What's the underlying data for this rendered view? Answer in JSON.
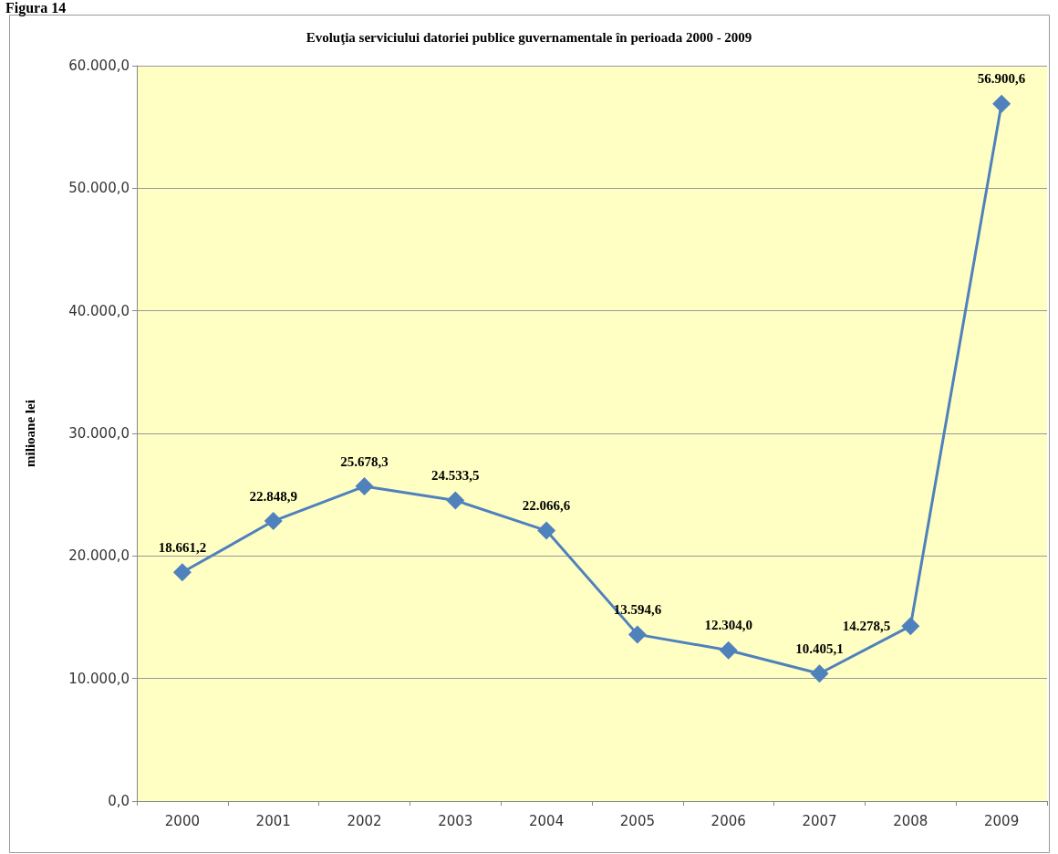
{
  "chart_data": {
    "type": "line",
    "title": "Evoluţia serviciului datoriei publice guvernamentale în perioada 2000 - 2009",
    "ylabel": "milioane lei",
    "annotations": [
      "Figura 14"
    ],
    "categories": [
      "2000",
      "2001",
      "2002",
      "2003",
      "2004",
      "2005",
      "2006",
      "2007",
      "2008",
      "2009"
    ],
    "series": [
      {
        "color": "#4f81bd",
        "values": [
          18661.2,
          22848.9,
          25678.3,
          24533.5,
          22066.6,
          13594.6,
          12304.0,
          10405.1,
          14278.5,
          56900.6
        ],
        "value_labels": [
          "18.661,2",
          "22.848,9",
          "25.678,3",
          "24.533,5",
          "22.066,6",
          "13.594,6",
          "12.304,0",
          "10.405,1",
          "14.278,5",
          "56.900,6"
        ]
      }
    ],
    "ylim": [
      0,
      60000
    ],
    "yticks": [
      {
        "value": 0,
        "label": "0,0"
      },
      {
        "value": 10000,
        "label": "10.000,0"
      },
      {
        "value": 20000,
        "label": "20.000,0"
      },
      {
        "value": 30000,
        "label": "30.000,0"
      },
      {
        "value": 40000,
        "label": "40.000,0"
      },
      {
        "value": 50000,
        "label": "50.000,0"
      },
      {
        "value": 60000,
        "label": "60.000,0"
      }
    ],
    "grid": "y",
    "marker": "diamond",
    "line_style": "solid"
  }
}
